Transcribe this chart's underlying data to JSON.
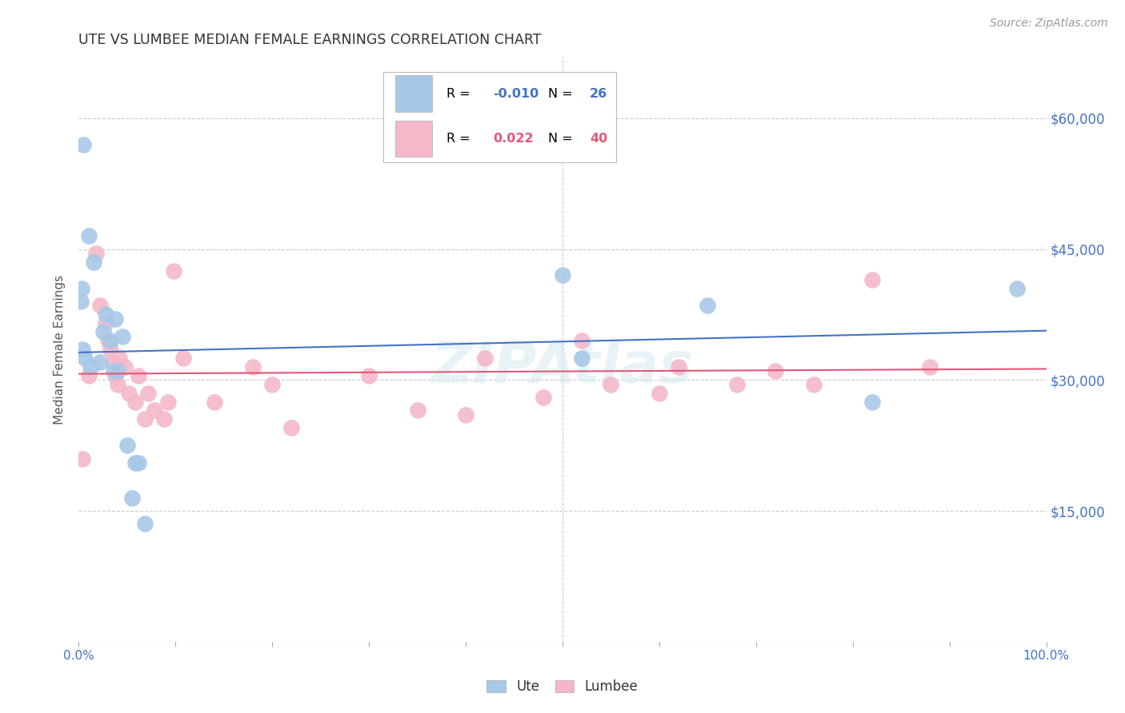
{
  "title": "UTE VS LUMBEE MEDIAN FEMALE EARNINGS CORRELATION CHART",
  "source": "Source: ZipAtlas.com",
  "ylabel": "Median Female Earnings",
  "ute_color": "#a8c8e8",
  "lumbee_color": "#f4b8c8",
  "ute_line_color": "#4472c4",
  "lumbee_line_color": "#e05878",
  "r_ute": -0.01,
  "n_ute": 26,
  "r_lumbee": 0.022,
  "n_lumbee": 40,
  "xlim": [
    0.0,
    1.0
  ],
  "ylim": [
    0,
    67000
  ],
  "ute_x": [
    0.005,
    0.01,
    0.015,
    0.003,
    0.002,
    0.004,
    0.006,
    0.012,
    0.022,
    0.028,
    0.025,
    0.033,
    0.038,
    0.036,
    0.04,
    0.045,
    0.05,
    0.058,
    0.062,
    0.055,
    0.068,
    0.5,
    0.52,
    0.65,
    0.82,
    0.97
  ],
  "ute_y": [
    57000,
    46500,
    43500,
    40500,
    39000,
    33500,
    32500,
    31500,
    32000,
    37500,
    35500,
    34500,
    37000,
    31000,
    31000,
    35000,
    22500,
    20500,
    20500,
    16500,
    13500,
    42000,
    32500,
    38500,
    27500,
    40500
  ],
  "lumbee_x": [
    0.004,
    0.01,
    0.018,
    0.022,
    0.028,
    0.03,
    0.033,
    0.036,
    0.038,
    0.04,
    0.042,
    0.048,
    0.052,
    0.058,
    0.062,
    0.068,
    0.072,
    0.078,
    0.088,
    0.092,
    0.098,
    0.108,
    0.14,
    0.18,
    0.2,
    0.22,
    0.3,
    0.35,
    0.4,
    0.42,
    0.48,
    0.52,
    0.55,
    0.6,
    0.62,
    0.68,
    0.72,
    0.76,
    0.82,
    0.88
  ],
  "lumbee_y": [
    21000,
    30500,
    44500,
    38500,
    36500,
    34500,
    33500,
    32000,
    30500,
    29500,
    32500,
    31500,
    28500,
    27500,
    30500,
    25500,
    28500,
    26500,
    25500,
    27500,
    42500,
    32500,
    27500,
    31500,
    29500,
    24500,
    30500,
    26500,
    26000,
    32500,
    28000,
    34500,
    29500,
    28500,
    31500,
    29500,
    31000,
    29500,
    41500,
    31500
  ],
  "watermark": "ZIPAtlas",
  "background_color": "#ffffff",
  "grid_color": "#cccccc",
  "ytick_vals": [
    0,
    15000,
    30000,
    45000,
    60000
  ],
  "ytick_labels_right": [
    "",
    "$15,000",
    "$30,000",
    "$45,000",
    "$60,000"
  ],
  "xtick_vals": [
    0.0,
    0.1,
    0.2,
    0.3,
    0.4,
    0.5,
    0.6,
    0.7,
    0.8,
    0.9,
    1.0
  ]
}
